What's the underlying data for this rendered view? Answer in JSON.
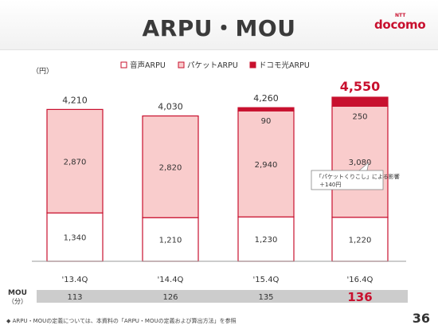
{
  "page": {
    "title": "ARPU・MOU",
    "number": "36"
  },
  "logo": {
    "prefix": "NTT",
    "name": "docomo"
  },
  "unit": "（円）",
  "legend": [
    {
      "label": "音声ARPU",
      "color": "#ffffff",
      "stroke": "#c8102e"
    },
    {
      "label": "パケットARPU",
      "color": "#f9cccc",
      "stroke": "#c8102e"
    },
    {
      "label": "ドコモ光ARPU",
      "color": "#c8102e",
      "stroke": "#c8102e"
    }
  ],
  "chart_data": {
    "type": "bar",
    "stacked": true,
    "categories": [
      "'13.4Q",
      "'14.4Q",
      "'15.4Q",
      "'16.4Q"
    ],
    "series": [
      {
        "name": "音声ARPU",
        "values": [
          1340,
          1210,
          1230,
          1220
        ]
      },
      {
        "name": "パケットARPU",
        "values": [
          2870,
          2820,
          2940,
          3080
        ]
      },
      {
        "name": "ドコモ光ARPU",
        "values": [
          0,
          0,
          90,
          250
        ]
      }
    ],
    "totals": [
      "4,210",
      "4,030",
      "4,260",
      "4,550"
    ],
    "value_labels": {
      "voice": [
        "1,340",
        "1,210",
        "1,230",
        "1,220"
      ],
      "packet": [
        "2,870",
        "2,820",
        "2,940",
        "3,080"
      ],
      "hikari": [
        "",
        "",
        "90",
        "250"
      ]
    },
    "ylabel": "（円）",
    "ylim": [
      0,
      4700
    ]
  },
  "callout": {
    "line1": "「パケットくりこし」による影響",
    "line2": "＋140円"
  },
  "mou": {
    "label_line1": "MOU",
    "label_line2": "（分）",
    "values": [
      "113",
      "126",
      "135",
      "136"
    ],
    "highlight_index": 3
  },
  "footnote": "◆ ARPU・MOUの定義については、本資料の「ARPU・MOUの定義および算出方法」を参照",
  "colors": {
    "accent": "#c8102e",
    "packet": "#f9cccc",
    "mou_bar": "#cccccc",
    "text": "#333333"
  }
}
